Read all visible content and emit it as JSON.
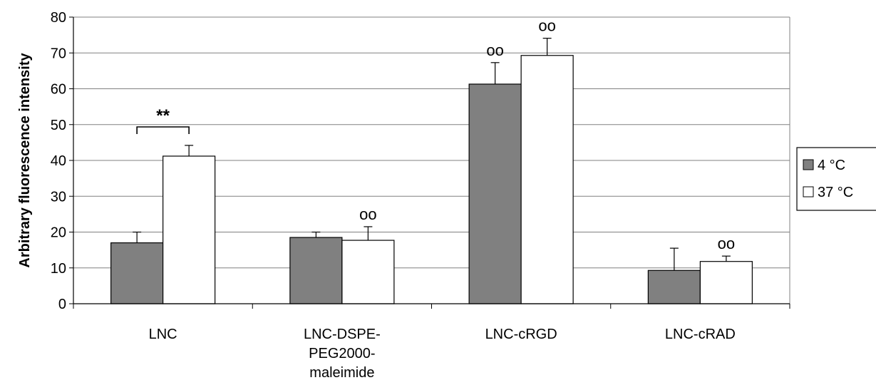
{
  "chart_data": {
    "type": "bar",
    "title": "",
    "xlabel": "",
    "ylabel": "Arbitrary fluorescence intensity",
    "ylim": [
      0,
      80
    ],
    "yticks": [
      0,
      10,
      20,
      30,
      40,
      50,
      60,
      70,
      80
    ],
    "grid": true,
    "legend_position": "right",
    "categories": [
      [
        "LNC"
      ],
      [
        "LNC-DSPE-",
        "PEG2000-",
        "maleimide"
      ],
      [
        "LNC-cRGD"
      ],
      [
        "LNC-cRAD"
      ]
    ],
    "series": [
      {
        "name": "4 °C",
        "color": "#808080",
        "values": [
          17,
          18.5,
          61.3,
          9.3
        ],
        "errors": [
          3,
          1.5,
          6,
          6.2
        ],
        "markers": [
          "",
          "",
          "oo",
          ""
        ]
      },
      {
        "name": "37 °C",
        "color": "#ffffff",
        "values": [
          41.2,
          17.7,
          69.3,
          11.8
        ],
        "errors": [
          3,
          3.8,
          4.8,
          1.5
        ],
        "markers": [
          "",
          "oo",
          "oo",
          "oo"
        ]
      }
    ],
    "annotations": [
      {
        "text": "**",
        "category": 0,
        "type": "bracket"
      }
    ]
  }
}
